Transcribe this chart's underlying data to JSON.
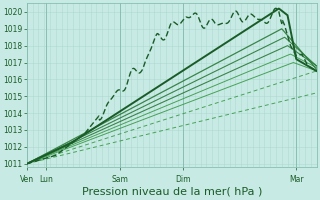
{
  "bg_color": "#c8eae4",
  "grid_color_minor": "#a8d8cc",
  "grid_color_major": "#88bfb0",
  "line_color_dark": "#1a5c28",
  "line_color_mid": "#2a7a38",
  "line_color_light": "#3a9a48",
  "ylim": [
    1011,
    1020.5
  ],
  "yticks": [
    1011,
    1012,
    1013,
    1014,
    1015,
    1016,
    1017,
    1018,
    1019,
    1020
  ],
  "xlabel": "Pression niveau de la mer( hPa )",
  "xlabel_fontsize": 8,
  "xtick_labels": [
    "Ven",
    "Lun",
    "Sam",
    "Dim",
    "Mar"
  ],
  "xtick_positions": [
    0.0,
    0.065,
    0.32,
    0.54,
    0.93
  ],
  "num_minor_gridlines": 50
}
